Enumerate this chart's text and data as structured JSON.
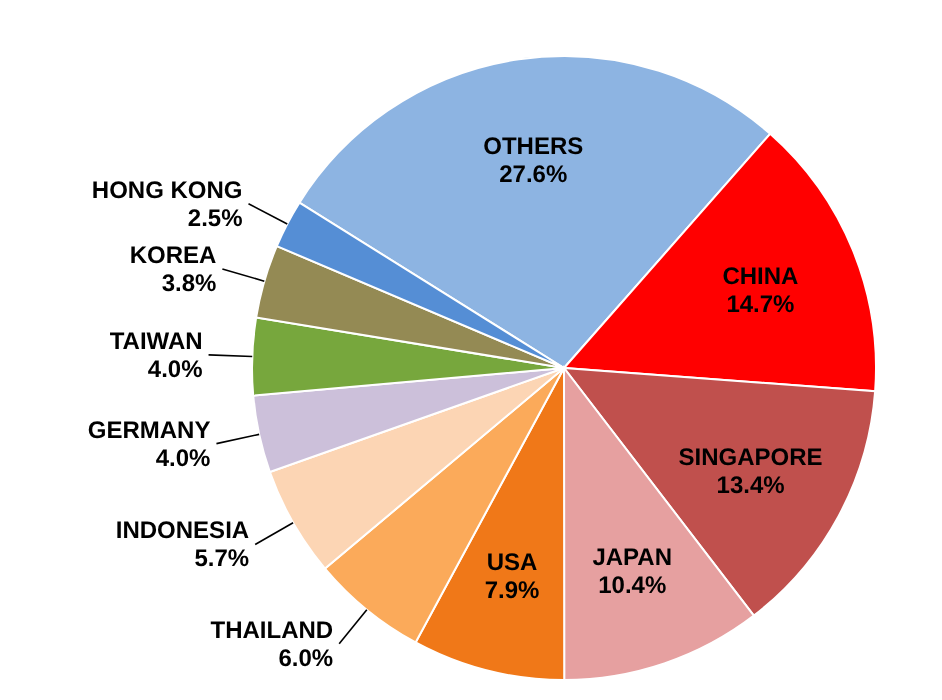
{
  "chart_data": {
    "type": "pie",
    "categories": [
      "OTHERS",
      "CHINA",
      "SINGAPORE",
      "JAPAN",
      "USA",
      "THAILAND",
      "INDONESIA",
      "GERMANY",
      "TAIWAN",
      "KOREA",
      "HONG KONG"
    ],
    "values": [
      27.6,
      14.7,
      13.4,
      10.4,
      7.9,
      6.0,
      5.7,
      4.0,
      4.0,
      3.8,
      2.5
    ],
    "value_labels": [
      "27.6%",
      "14.7%",
      "13.4%",
      "10.4%",
      "7.9%",
      "6.0%",
      "5.7%",
      "4.0%",
      "4.0%",
      "3.8%",
      "2.5%"
    ],
    "colors": [
      "#8db4e2",
      "#ff0000",
      "#c0504d",
      "#e6a0a0",
      "#f07818",
      "#fbaa5a",
      "#fcd5b4",
      "#ccc0da",
      "#77a73d",
      "#948a54",
      "#558ed5"
    ]
  }
}
